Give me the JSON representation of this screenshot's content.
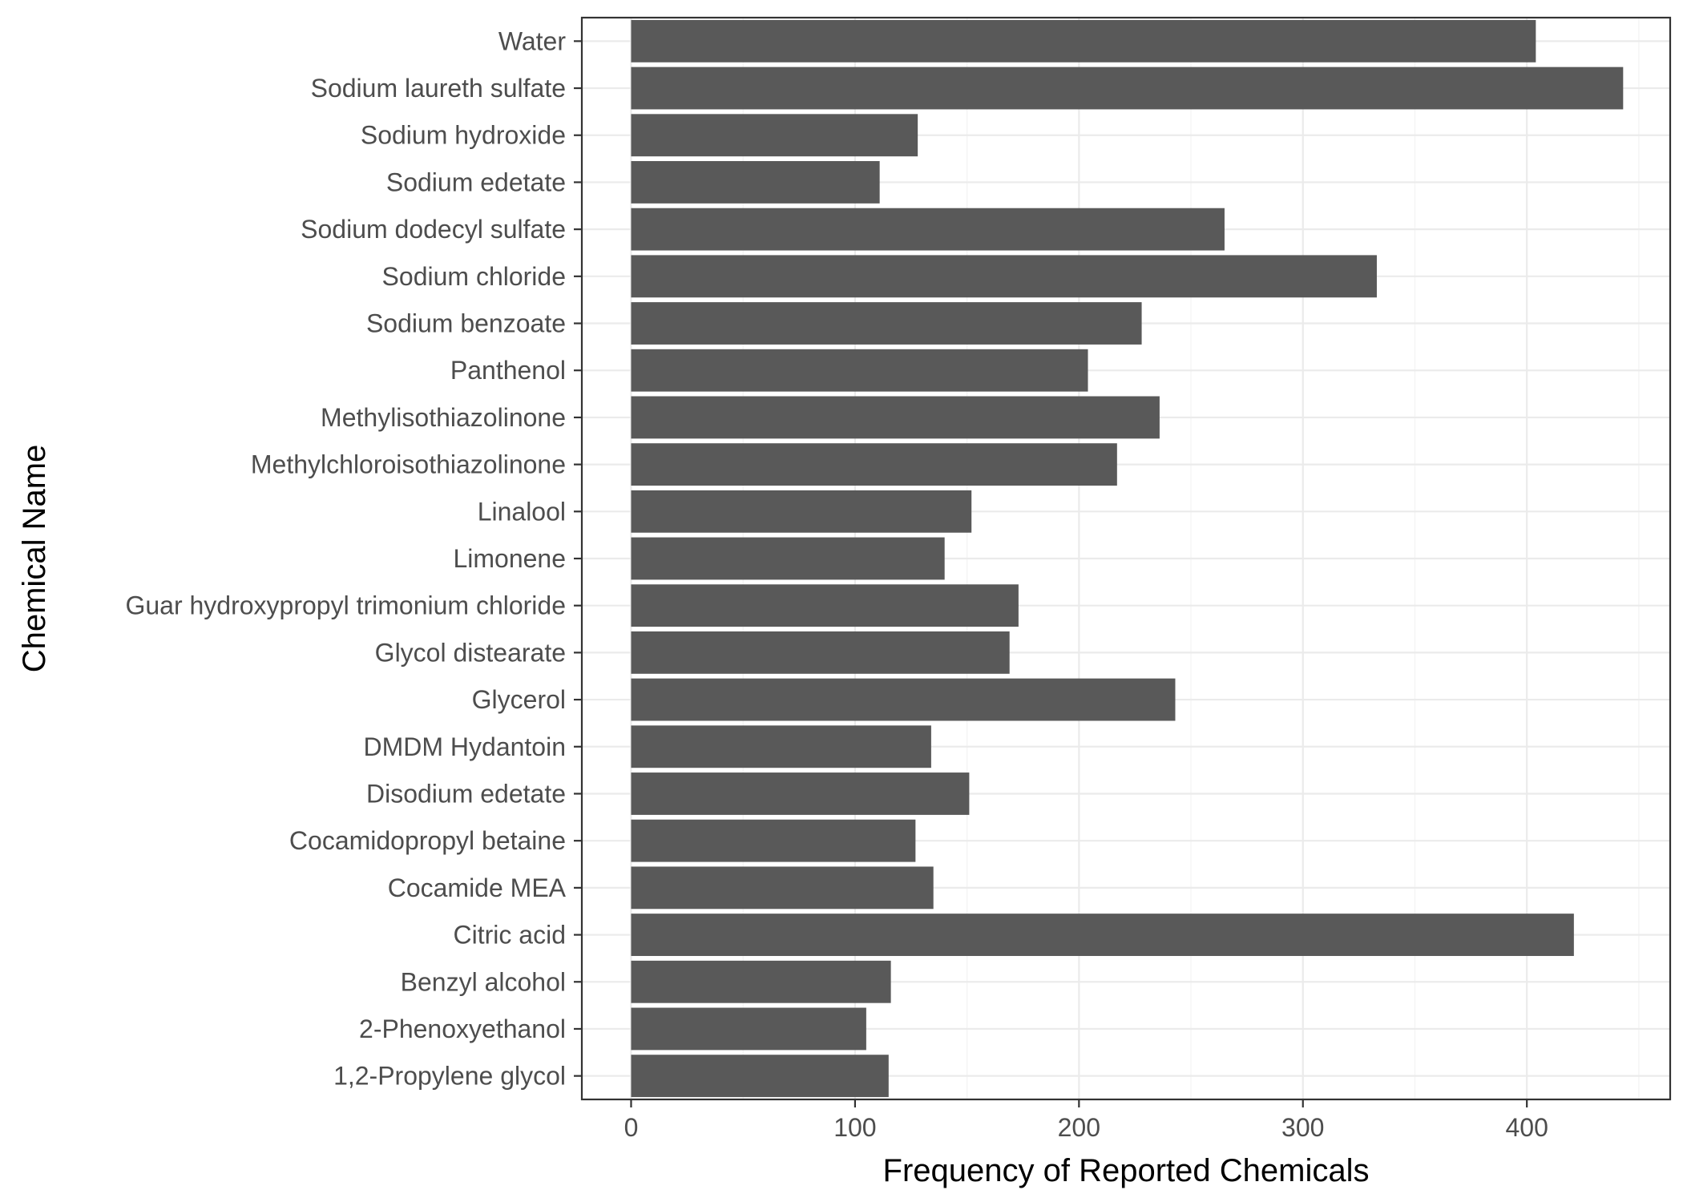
{
  "chart_data": {
    "type": "bar",
    "orientation": "horizontal",
    "xlabel": "Frequency of Reported Chemicals",
    "ylabel": "Chemical Name",
    "xlim": [
      -22,
      464
    ],
    "x_ticks": [
      0,
      100,
      200,
      300,
      400
    ],
    "grid": true,
    "bar_color": "#595959",
    "categories": [
      "Water",
      "Sodium laureth sulfate",
      "Sodium hydroxide",
      "Sodium edetate",
      "Sodium dodecyl sulfate",
      "Sodium chloride",
      "Sodium benzoate",
      "Panthenol",
      "Methylisothiazolinone",
      "Methylchloroisothiazolinone",
      "Linalool",
      "Limonene",
      "Guar hydroxypropyl trimonium chloride",
      "Glycol distearate",
      "Glycerol",
      "DMDM Hydantoin",
      "Disodium edetate",
      "Cocamidopropyl betaine",
      "Cocamide MEA",
      "Citric acid",
      "Benzyl alcohol",
      "2-Phenoxyethanol",
      "1,2-Propylene glycol"
    ],
    "values": [
      404,
      443,
      128,
      111,
      265,
      333,
      228,
      204,
      236,
      217,
      152,
      140,
      173,
      169,
      243,
      134,
      151,
      127,
      135,
      421,
      116,
      105,
      115
    ]
  }
}
